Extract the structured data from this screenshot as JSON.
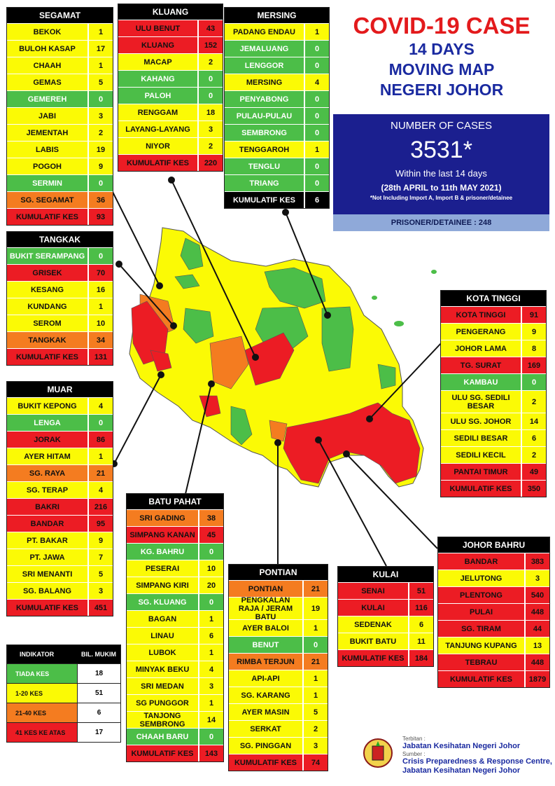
{
  "title": {
    "line1": "COVID-19 CASE",
    "line2": "14 DAYS",
    "line3": "MOVING MAP",
    "line4": "NEGERI JOHOR"
  },
  "summary": {
    "heading": "NUMBER OF CASES",
    "total": "3531*",
    "within": "Within the last 14 days",
    "period": "(28th APRIL to 11th MAY 2021)",
    "note": "*Not Including Import A, Import B & prisoner/detainee",
    "prisoner": "PRISONER/DETAINEE : 248"
  },
  "colors": {
    "green": "#4cbe48",
    "yellow": "#fbfa05",
    "orange": "#f47c20",
    "red": "#ec1c24"
  },
  "districts": {
    "segamat": {
      "name": "SEGAMAT",
      "rows": [
        {
          "name": "BEKOK",
          "value": "1",
          "level": "yellow"
        },
        {
          "name": "BULOH KASAP",
          "value": "17",
          "level": "yellow"
        },
        {
          "name": "CHAAH",
          "value": "1",
          "level": "yellow"
        },
        {
          "name": "GEMAS",
          "value": "5",
          "level": "yellow"
        },
        {
          "name": "GEMEREH",
          "value": "0",
          "level": "green"
        },
        {
          "name": "JABI",
          "value": "3",
          "level": "yellow"
        },
        {
          "name": "JEMENTAH",
          "value": "2",
          "level": "yellow"
        },
        {
          "name": "LABIS",
          "value": "19",
          "level": "yellow"
        },
        {
          "name": "POGOH",
          "value": "9",
          "level": "yellow"
        },
        {
          "name": "SERMIN",
          "value": "0",
          "level": "green"
        },
        {
          "name": "SG. SEGAMAT",
          "value": "36",
          "level": "orange"
        },
        {
          "name": "KUMULATIF KES",
          "value": "93",
          "level": "total"
        }
      ]
    },
    "kluang": {
      "name": "KLUANG",
      "rows": [
        {
          "name": "ULU BENUT",
          "value": "43",
          "level": "red"
        },
        {
          "name": "KLUANG",
          "value": "152",
          "level": "red"
        },
        {
          "name": "MACAP",
          "value": "2",
          "level": "yellow"
        },
        {
          "name": "KAHANG",
          "value": "0",
          "level": "green"
        },
        {
          "name": "PALOH",
          "value": "0",
          "level": "green"
        },
        {
          "name": "RENGGAM",
          "value": "18",
          "level": "yellow"
        },
        {
          "name": "LAYANG-LAYANG",
          "value": "3",
          "level": "yellow"
        },
        {
          "name": "NIYOR",
          "value": "2",
          "level": "yellow"
        },
        {
          "name": "KUMULATIF KES",
          "value": "220",
          "level": "total"
        }
      ]
    },
    "mersing": {
      "name": "MERSING",
      "rows": [
        {
          "name": "PADANG ENDAU",
          "value": "1",
          "level": "yellow"
        },
        {
          "name": "JEMALUANG",
          "value": "0",
          "level": "green"
        },
        {
          "name": "LENGGOR",
          "value": "0",
          "level": "green"
        },
        {
          "name": "MERSING",
          "value": "4",
          "level": "yellow"
        },
        {
          "name": "PENYABONG",
          "value": "0",
          "level": "green"
        },
        {
          "name": "PULAU-PULAU",
          "value": "0",
          "level": "green"
        },
        {
          "name": "SEMBRONG",
          "value": "0",
          "level": "green"
        },
        {
          "name": "TENGGAROH",
          "value": "1",
          "level": "yellow"
        },
        {
          "name": "TENGLU",
          "value": "0",
          "level": "green"
        },
        {
          "name": "TRIANG",
          "value": "0",
          "level": "green"
        },
        {
          "name": "KUMULATIF KES",
          "value": "6",
          "level": "total-black"
        }
      ]
    },
    "tangkak": {
      "name": "TANGKAK",
      "rows": [
        {
          "name": "BUKIT SERAMPANG",
          "value": "0",
          "level": "green"
        },
        {
          "name": "GRISEK",
          "value": "70",
          "level": "red"
        },
        {
          "name": "KESANG",
          "value": "16",
          "level": "yellow"
        },
        {
          "name": "KUNDANG",
          "value": "1",
          "level": "yellow"
        },
        {
          "name": "SEROM",
          "value": "10",
          "level": "yellow"
        },
        {
          "name": "TANGKAK",
          "value": "34",
          "level": "orange"
        },
        {
          "name": "KUMULATIF KES",
          "value": "131",
          "level": "total"
        }
      ]
    },
    "muar": {
      "name": "MUAR",
      "rows": [
        {
          "name": "BUKIT KEPONG",
          "value": "4",
          "level": "yellow"
        },
        {
          "name": "LENGA",
          "value": "0",
          "level": "green"
        },
        {
          "name": "JORAK",
          "value": "86",
          "level": "red"
        },
        {
          "name": "AYER HITAM",
          "value": "1",
          "level": "yellow"
        },
        {
          "name": "SG. RAYA",
          "value": "21",
          "level": "orange"
        },
        {
          "name": "SG. TERAP",
          "value": "4",
          "level": "yellow"
        },
        {
          "name": "BAKRI",
          "value": "216",
          "level": "red"
        },
        {
          "name": "BANDAR",
          "value": "95",
          "level": "red"
        },
        {
          "name": "PT. BAKAR",
          "value": "9",
          "level": "yellow"
        },
        {
          "name": "PT. JAWA",
          "value": "7",
          "level": "yellow"
        },
        {
          "name": "SRI MENANTI",
          "value": "5",
          "level": "yellow"
        },
        {
          "name": "SG. BALANG",
          "value": "3",
          "level": "yellow"
        },
        {
          "name": "KUMULATIF KES",
          "value": "451",
          "level": "total"
        }
      ]
    },
    "batupahat": {
      "name": "BATU PAHAT",
      "rows": [
        {
          "name": "SRI GADING",
          "value": "38",
          "level": "orange"
        },
        {
          "name": "SIMPANG KANAN",
          "value": "45",
          "level": "red"
        },
        {
          "name": "KG. BAHRU",
          "value": "0",
          "level": "green"
        },
        {
          "name": "PESERAI",
          "value": "10",
          "level": "yellow"
        },
        {
          "name": "SIMPANG KIRI",
          "value": "20",
          "level": "yellow"
        },
        {
          "name": "SG. KLUANG",
          "value": "0",
          "level": "green"
        },
        {
          "name": "BAGAN",
          "value": "1",
          "level": "yellow"
        },
        {
          "name": "LINAU",
          "value": "6",
          "level": "yellow"
        },
        {
          "name": "LUBOK",
          "value": "1",
          "level": "yellow"
        },
        {
          "name": "MINYAK BEKU",
          "value": "4",
          "level": "yellow"
        },
        {
          "name": "SRI MEDAN",
          "value": "3",
          "level": "yellow"
        },
        {
          "name": "SG PUNGGOR",
          "value": "1",
          "level": "yellow"
        },
        {
          "name": "TANJONG SEMBRONG",
          "value": "14",
          "level": "yellow"
        },
        {
          "name": "CHAAH BARU",
          "value": "0",
          "level": "green"
        },
        {
          "name": "KUMULATIF KES",
          "value": "143",
          "level": "total"
        }
      ]
    },
    "pontian": {
      "name": "PONTIAN",
      "rows": [
        {
          "name": "PONTIAN",
          "value": "21",
          "level": "orange"
        },
        {
          "name": "PENGKALAN RAJA / JERAM BATU",
          "value": "19",
          "level": "yellow"
        },
        {
          "name": "AYER BALOI",
          "value": "1",
          "level": "yellow"
        },
        {
          "name": "BENUT",
          "value": "0",
          "level": "green"
        },
        {
          "name": "RIMBA TERJUN",
          "value": "21",
          "level": "orange"
        },
        {
          "name": "API-API",
          "value": "1",
          "level": "yellow"
        },
        {
          "name": "SG. KARANG",
          "value": "1",
          "level": "yellow"
        },
        {
          "name": "AYER MASIN",
          "value": "5",
          "level": "yellow"
        },
        {
          "name": "SERKAT",
          "value": "2",
          "level": "yellow"
        },
        {
          "name": "SG. PINGGAN",
          "value": "3",
          "level": "yellow"
        },
        {
          "name": "KUMULATIF KES",
          "value": "74",
          "level": "total"
        }
      ]
    },
    "kulai": {
      "name": "KULAI",
      "rows": [
        {
          "name": "SENAI",
          "value": "51",
          "level": "red"
        },
        {
          "name": "KULAI",
          "value": "116",
          "level": "red"
        },
        {
          "name": "SEDENAK",
          "value": "6",
          "level": "yellow"
        },
        {
          "name": "BUKIT BATU",
          "value": "11",
          "level": "yellow"
        },
        {
          "name": "KUMULATIF KES",
          "value": "184",
          "level": "total"
        }
      ]
    },
    "kotatinggi": {
      "name": "KOTA TINGGI",
      "rows": [
        {
          "name": "KOTA TINGGI",
          "value": "91",
          "level": "red"
        },
        {
          "name": "PENGERANG",
          "value": "9",
          "level": "yellow"
        },
        {
          "name": "JOHOR LAMA",
          "value": "8",
          "level": "yellow"
        },
        {
          "name": "TG. SURAT",
          "value": "169",
          "level": "red"
        },
        {
          "name": "KAMBAU",
          "value": "0",
          "level": "green"
        },
        {
          "name": "ULU SG. SEDILI BESAR",
          "value": "2",
          "level": "yellow"
        },
        {
          "name": "ULU  SG. JOHOR",
          "value": "14",
          "level": "yellow"
        },
        {
          "name": "SEDILI BESAR",
          "value": "6",
          "level": "yellow"
        },
        {
          "name": "SEDILI KECIL",
          "value": "2",
          "level": "yellow"
        },
        {
          "name": "PANTAI TIMUR",
          "value": "49",
          "level": "red"
        },
        {
          "name": "KUMULATIF KES",
          "value": "350",
          "level": "total"
        }
      ]
    },
    "johorbahru": {
      "name": "JOHOR BAHRU",
      "rows": [
        {
          "name": "BANDAR",
          "value": "383",
          "level": "red"
        },
        {
          "name": "JELUTONG",
          "value": "3",
          "level": "yellow"
        },
        {
          "name": "PLENTONG",
          "value": "540",
          "level": "red"
        },
        {
          "name": "PULAI",
          "value": "448",
          "level": "red"
        },
        {
          "name": "SG. TIRAM",
          "value": "44",
          "level": "red"
        },
        {
          "name": "TANJUNG KUPANG",
          "value": "13",
          "level": "yellow"
        },
        {
          "name": "TEBRAU",
          "value": "448",
          "level": "red"
        },
        {
          "name": "KUMULATIF KES",
          "value": "1879",
          "level": "total"
        }
      ]
    }
  },
  "legend": {
    "header_indicator": "INDIKATOR",
    "header_count": "BIL. MUKIM",
    "rows": [
      {
        "label": "TIADA KES",
        "count": "18",
        "level": "green"
      },
      {
        "label": "1-20 KES",
        "count": "51",
        "level": "yellow"
      },
      {
        "label": "21-40 KES",
        "count": "6",
        "level": "orange"
      },
      {
        "label": "41 KES KE ATAS",
        "count": "17",
        "level": "red"
      }
    ]
  },
  "source": {
    "terbitan_label": "Terbitan :",
    "publisher": "Jabatan Kesihatan Negeri Johor",
    "sumber_label": "Sumber :",
    "source1": "Crisis Preparedness & Response Centre,",
    "source2": "Jabatan Kesihatan Negeri Johor"
  }
}
